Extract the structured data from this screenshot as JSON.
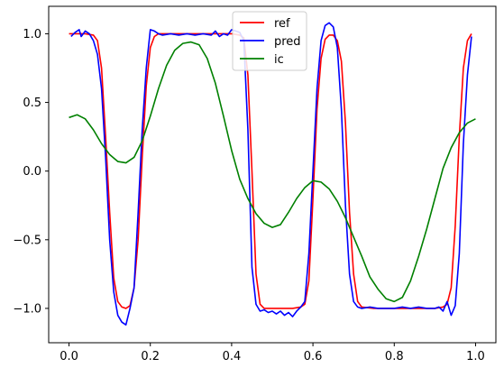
{
  "chart_data": {
    "type": "line",
    "title": "",
    "xlabel": "",
    "ylabel": "",
    "xlim": [
      -0.05,
      1.05
    ],
    "ylim": [
      -1.25,
      1.2
    ],
    "x_ticks": [
      0.0,
      0.2,
      0.4,
      0.6,
      0.8,
      1.0
    ],
    "x_tick_labels": [
      "0.0",
      "0.2",
      "0.4",
      "0.6",
      "0.8",
      "1.0"
    ],
    "y_ticks": [
      -1.0,
      -0.5,
      0.0,
      0.5,
      1.0
    ],
    "y_tick_labels": [
      "−1.0",
      "−0.5",
      "0.0",
      "0.5",
      "1.0"
    ],
    "grid": false,
    "legend_position": "top-center",
    "series": [
      {
        "name": "ref",
        "color": "#ff0000",
        "x": [
          0.0,
          0.02,
          0.04,
          0.06,
          0.07,
          0.08,
          0.09,
          0.1,
          0.11,
          0.12,
          0.13,
          0.14,
          0.15,
          0.16,
          0.17,
          0.18,
          0.19,
          0.2,
          0.21,
          0.22,
          0.25,
          0.3,
          0.35,
          0.4,
          0.42,
          0.43,
          0.44,
          0.45,
          0.46,
          0.47,
          0.48,
          0.5,
          0.55,
          0.57,
          0.58,
          0.59,
          0.6,
          0.61,
          0.62,
          0.63,
          0.64,
          0.65,
          0.66,
          0.67,
          0.68,
          0.69,
          0.7,
          0.71,
          0.72,
          0.75,
          0.8,
          0.85,
          0.9,
          0.92,
          0.93,
          0.94,
          0.95,
          0.96,
          0.97,
          0.98,
          0.99
        ],
        "values": [
          1.0,
          1.0,
          1.0,
          0.99,
          0.95,
          0.75,
          0.25,
          -0.3,
          -0.78,
          -0.95,
          -0.99,
          -1.0,
          -0.98,
          -0.85,
          -0.5,
          0.1,
          0.62,
          0.9,
          0.98,
          1.0,
          1.0,
          1.0,
          1.0,
          1.0,
          0.99,
          0.97,
          0.7,
          0.0,
          -0.75,
          -0.97,
          -1.0,
          -1.0,
          -1.0,
          -0.99,
          -0.97,
          -0.8,
          -0.2,
          0.45,
          0.82,
          0.96,
          0.99,
          0.99,
          0.95,
          0.8,
          0.35,
          -0.3,
          -0.75,
          -0.95,
          -0.99,
          -1.0,
          -1.0,
          -1.0,
          -1.0,
          -0.99,
          -0.97,
          -0.85,
          -0.4,
          0.25,
          0.75,
          0.95,
          1.0
        ]
      },
      {
        "name": "pred",
        "color": "#0000ff",
        "x": [
          0.005,
          0.015,
          0.025,
          0.03,
          0.04,
          0.05,
          0.06,
          0.07,
          0.08,
          0.09,
          0.1,
          0.11,
          0.12,
          0.13,
          0.14,
          0.15,
          0.16,
          0.17,
          0.18,
          0.19,
          0.2,
          0.21,
          0.22,
          0.23,
          0.25,
          0.27,
          0.29,
          0.31,
          0.33,
          0.35,
          0.36,
          0.37,
          0.38,
          0.39,
          0.4,
          0.41,
          0.42,
          0.43,
          0.44,
          0.45,
          0.46,
          0.47,
          0.48,
          0.49,
          0.5,
          0.51,
          0.52,
          0.53,
          0.54,
          0.55,
          0.56,
          0.57,
          0.58,
          0.59,
          0.6,
          0.61,
          0.62,
          0.63,
          0.64,
          0.65,
          0.66,
          0.67,
          0.68,
          0.69,
          0.7,
          0.71,
          0.72,
          0.74,
          0.76,
          0.78,
          0.8,
          0.82,
          0.84,
          0.86,
          0.88,
          0.9,
          0.91,
          0.92,
          0.93,
          0.94,
          0.95,
          0.96,
          0.97,
          0.98,
          0.99
        ],
        "values": [
          0.98,
          1.01,
          1.03,
          0.98,
          1.02,
          1.0,
          0.95,
          0.85,
          0.6,
          0.1,
          -0.5,
          -0.88,
          -1.05,
          -1.1,
          -1.12,
          -1.0,
          -0.85,
          -0.3,
          0.3,
          0.75,
          1.03,
          1.02,
          1.0,
          0.99,
          1.0,
          0.99,
          1.0,
          0.99,
          1.0,
          0.99,
          1.02,
          0.98,
          1.0,
          0.99,
          1.03,
          1.02,
          1.01,
          0.95,
          0.3,
          -0.7,
          -0.97,
          -1.02,
          -1.01,
          -1.03,
          -1.02,
          -1.04,
          -1.02,
          -1.05,
          -1.03,
          -1.06,
          -1.02,
          -0.99,
          -0.95,
          -0.6,
          0.0,
          0.6,
          0.95,
          1.06,
          1.08,
          1.05,
          0.9,
          0.45,
          -0.25,
          -0.75,
          -0.95,
          -0.99,
          -1.0,
          -0.99,
          -1.0,
          -1.0,
          -1.0,
          -0.99,
          -1.0,
          -0.99,
          -1.0,
          -1.0,
          -0.99,
          -1.02,
          -0.95,
          -1.05,
          -0.98,
          -0.6,
          0.2,
          0.7,
          0.98
        ]
      },
      {
        "name": "ic",
        "color": "#008000",
        "x": [
          0.0,
          0.02,
          0.04,
          0.06,
          0.08,
          0.1,
          0.12,
          0.14,
          0.16,
          0.18,
          0.2,
          0.22,
          0.24,
          0.26,
          0.28,
          0.3,
          0.32,
          0.34,
          0.36,
          0.38,
          0.4,
          0.42,
          0.44,
          0.46,
          0.48,
          0.5,
          0.52,
          0.54,
          0.56,
          0.58,
          0.6,
          0.62,
          0.64,
          0.66,
          0.68,
          0.7,
          0.72,
          0.74,
          0.76,
          0.78,
          0.8,
          0.82,
          0.84,
          0.86,
          0.88,
          0.9,
          0.92,
          0.94,
          0.96,
          0.98,
          1.0
        ],
        "values": [
          0.39,
          0.41,
          0.38,
          0.3,
          0.2,
          0.12,
          0.07,
          0.06,
          0.1,
          0.22,
          0.4,
          0.6,
          0.77,
          0.88,
          0.93,
          0.94,
          0.92,
          0.82,
          0.64,
          0.4,
          0.15,
          -0.06,
          -0.2,
          -0.31,
          -0.38,
          -0.41,
          -0.39,
          -0.3,
          -0.2,
          -0.12,
          -0.07,
          -0.08,
          -0.13,
          -0.22,
          -0.34,
          -0.48,
          -0.62,
          -0.77,
          -0.86,
          -0.93,
          -0.95,
          -0.92,
          -0.8,
          -0.62,
          -0.42,
          -0.2,
          0.02,
          0.17,
          0.28,
          0.35,
          0.38
        ]
      }
    ]
  }
}
